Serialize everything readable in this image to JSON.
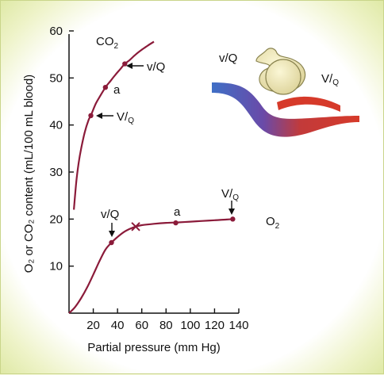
{
  "chart_data": {
    "type": "line",
    "xlabel": "Partial pressure (mm Hg)",
    "ylabel": "O₂ or CO₂ content (mL/100 mL blood)",
    "xlim": [
      0,
      140
    ],
    "ylim": [
      0,
      60
    ],
    "x_ticks": [
      20,
      40,
      60,
      80,
      100,
      120,
      140
    ],
    "y_ticks": [
      10,
      20,
      30,
      40,
      50,
      60
    ],
    "series": [
      {
        "name": "CO₂",
        "color": "#8b1b3a",
        "x": [
          4,
          6,
          8,
          10,
          13,
          16,
          18,
          22,
          26,
          30,
          34,
          38,
          42,
          46,
          50,
          55,
          60,
          65,
          70
        ],
        "y": [
          22,
          28,
          32,
          35,
          38.5,
          41,
          42,
          44.5,
          46.3,
          48,
          49.3,
          50.6,
          51.8,
          53,
          53.8,
          55,
          56,
          56.9,
          57.7
        ]
      },
      {
        "name": "O₂",
        "color": "#8b1b3a",
        "x": [
          0,
          5,
          10,
          15,
          20,
          25,
          30,
          35,
          40,
          45,
          50,
          55,
          60,
          70,
          80,
          90,
          100,
          110,
          120,
          130,
          135
        ],
        "y": [
          0,
          1.3,
          3.2,
          5.5,
          8.2,
          11,
          13.5,
          15,
          16.2,
          17.2,
          17.9,
          18.4,
          18.7,
          19.0,
          19.2,
          19.3,
          19.45,
          19.6,
          19.75,
          19.9,
          20
        ]
      }
    ],
    "points": [
      {
        "series": "CO₂",
        "label": "V/Q",
        "x": 18,
        "y": 42
      },
      {
        "series": "CO₂",
        "label": "a",
        "x": 30,
        "y": 48
      },
      {
        "series": "CO₂",
        "label": "v/Q",
        "x": 46,
        "y": 53
      },
      {
        "series": "O₂",
        "label": "v/Q",
        "x": 35,
        "y": 15
      },
      {
        "series": "O₂",
        "label": "a",
        "x": 88,
        "y": 19.2
      },
      {
        "series": "O₂",
        "label": "V/Q",
        "x": 135,
        "y": 20
      }
    ],
    "marker_x": {
      "x": 55,
      "y": 18.4
    },
    "series_labels": {
      "co2": "CO",
      "co2_sub": "2",
      "o2": "O",
      "o2_sub": "2"
    },
    "annotations": {
      "co2_vQ_low": "V/",
      "co2_vQ_low_sub": "Q",
      "co2_a": "a",
      "co2_vQ_high": "v/Q",
      "o2_vQ_low": "v/Q",
      "o2_a": "a",
      "o2_vQ_high": "V/",
      "o2_vQ_high_sub": "Q"
    },
    "inset_labels": {
      "left": "v/Q",
      "right": "V/",
      "right_sub": "Q"
    }
  }
}
